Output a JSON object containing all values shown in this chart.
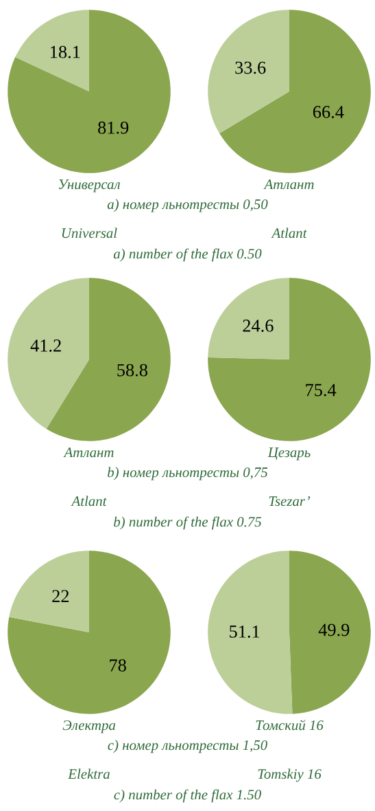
{
  "chart_data": [
    {
      "type": "pie",
      "xlabel": "Универсал",
      "categories": [
        null,
        null
      ],
      "values": [
        81.9,
        18.1
      ],
      "colors": [
        "#8aa64f",
        "#bccf99"
      ],
      "data_labels": true,
      "annotations": [
        "Universal",
        "а) номер льнотресты 0,50",
        "a) number of the flax 0.50"
      ]
    },
    {
      "type": "pie",
      "xlabel": "Атлант",
      "categories": [
        null,
        null
      ],
      "values": [
        66.4,
        33.6
      ],
      "colors": [
        "#8aa64f",
        "#bccf99"
      ],
      "data_labels": true,
      "annotations": [
        "Atlant"
      ]
    },
    {
      "type": "pie",
      "xlabel": "Атлант",
      "categories": [
        null,
        null
      ],
      "values": [
        58.8,
        41.2
      ],
      "colors": [
        "#8aa64f",
        "#bccf99"
      ],
      "data_labels": true,
      "annotations": [
        "Atlant",
        "b) номер льнотресты 0,75",
        "b) number of the flax 0.75"
      ]
    },
    {
      "type": "pie",
      "xlabel": "Цезарь",
      "categories": [
        null,
        null
      ],
      "values": [
        75.4,
        24.6
      ],
      "colors": [
        "#8aa64f",
        "#bccf99"
      ],
      "data_labels": true,
      "annotations": [
        "Tsezar’"
      ]
    },
    {
      "type": "pie",
      "xlabel": "Электра",
      "categories": [
        null,
        null
      ],
      "values": [
        78,
        22
      ],
      "colors": [
        "#8aa64f",
        "#bccf99"
      ],
      "data_labels": true,
      "annotations": [
        "Elektra",
        "c) номер льнотресты 1,50",
        "c) number of the flax 1.50"
      ]
    },
    {
      "type": "pie",
      "xlabel": "Томский 16",
      "categories": [
        null,
        null
      ],
      "values": [
        49.9,
        51.1
      ],
      "colors": [
        "#8aa64f",
        "#bccf99"
      ],
      "data_labels": true,
      "annotations": [
        "Tomskiy 16"
      ]
    }
  ]
}
